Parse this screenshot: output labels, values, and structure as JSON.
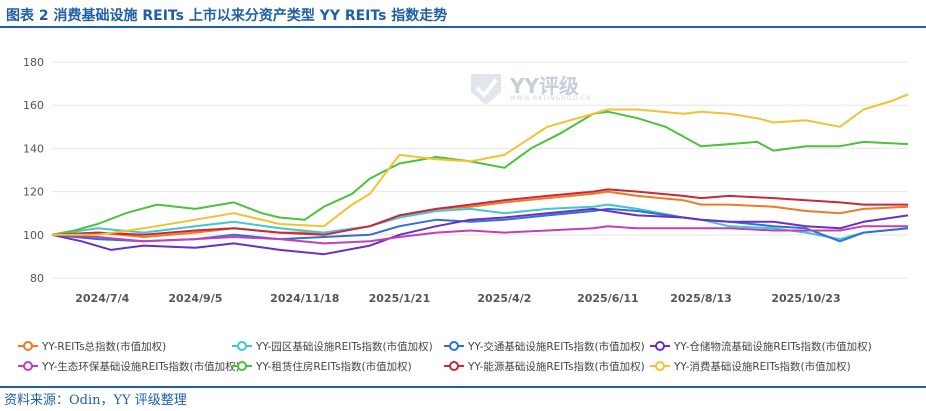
{
  "figure_title": "图表 2 消费基础设施 REITs 上市以来分资产类型 YY REITs 指数走势",
  "source_note": "资料来源：Odin，YY 评级整理",
  "watermark": {
    "text": "YY评级",
    "sub": "WWW.RATINGDOG.CN",
    "icon": "check-shield-icon"
  },
  "chart_data": {
    "type": "line",
    "title": "",
    "xlabel": "",
    "ylabel": "",
    "ylim": [
      80,
      180
    ],
    "yticks": [
      80,
      100,
      120,
      140,
      160,
      180
    ],
    "grid": true,
    "legend_position": "bottom",
    "x_range": [
      "2024-05-31",
      "2025-12-31"
    ],
    "xticks": [
      "2024/7/4",
      "2024/9/5",
      "2024/11/18",
      "2025/1/21",
      "2025/4/2",
      "2025/6/11",
      "2025/8/13",
      "2025/10/23"
    ],
    "series": [
      {
        "name": "YY-REITs总指数(市值加权)",
        "color": "#f07a1f",
        "points": [
          [
            "2024-05-31",
            100
          ],
          [
            "2024-07-01",
            101
          ],
          [
            "2024-08-01",
            99
          ],
          [
            "2024-09-05",
            101
          ],
          [
            "2024-10-01",
            103
          ],
          [
            "2024-11-01",
            101
          ],
          [
            "2024-12-01",
            101
          ],
          [
            "2025-01-01",
            104
          ],
          [
            "2025-01-21",
            109
          ],
          [
            "2025-02-15",
            112
          ],
          [
            "2025-03-10",
            113
          ],
          [
            "2025-04-02",
            115
          ],
          [
            "2025-05-01",
            117
          ],
          [
            "2025-06-01",
            119
          ],
          [
            "2025-06-11",
            120
          ],
          [
            "2025-07-01",
            118
          ],
          [
            "2025-08-01",
            116
          ],
          [
            "2025-08-13",
            114
          ],
          [
            "2025-09-01",
            114
          ],
          [
            "2025-10-01",
            113
          ],
          [
            "2025-10-23",
            111
          ],
          [
            "2025-11-15",
            110
          ],
          [
            "2025-12-01",
            112
          ],
          [
            "2025-12-31",
            113
          ]
        ]
      },
      {
        "name": "YY-园区基础设施REITs指数(市值加权)",
        "color": "#3ec8d0",
        "points": [
          [
            "2024-05-31",
            100
          ],
          [
            "2024-07-01",
            103
          ],
          [
            "2024-08-01",
            101
          ],
          [
            "2024-09-05",
            104
          ],
          [
            "2024-10-01",
            106
          ],
          [
            "2024-11-01",
            103
          ],
          [
            "2024-12-01",
            101
          ],
          [
            "2025-01-01",
            104
          ],
          [
            "2025-01-21",
            108
          ],
          [
            "2025-02-15",
            111
          ],
          [
            "2025-03-10",
            112
          ],
          [
            "2025-04-02",
            110
          ],
          [
            "2025-05-01",
            112
          ],
          [
            "2025-06-01",
            113
          ],
          [
            "2025-06-11",
            114
          ],
          [
            "2025-07-01",
            112
          ],
          [
            "2025-08-01",
            108
          ],
          [
            "2025-08-13",
            107
          ],
          [
            "2025-09-01",
            104
          ],
          [
            "2025-10-01",
            103
          ],
          [
            "2025-10-23",
            101
          ],
          [
            "2025-11-15",
            98
          ],
          [
            "2025-12-01",
            101
          ],
          [
            "2025-12-31",
            103
          ]
        ]
      },
      {
        "name": "YY-交通基础设施REITs指数(市值加权)",
        "color": "#2f6fd6",
        "points": [
          [
            "2024-05-31",
            100
          ],
          [
            "2024-07-01",
            98
          ],
          [
            "2024-08-01",
            97
          ],
          [
            "2024-09-05",
            98
          ],
          [
            "2024-10-01",
            100
          ],
          [
            "2024-11-01",
            98
          ],
          [
            "2024-12-01",
            99
          ],
          [
            "2025-01-01",
            100
          ],
          [
            "2025-01-21",
            104
          ],
          [
            "2025-02-15",
            107
          ],
          [
            "2025-03-10",
            106
          ],
          [
            "2025-04-02",
            107
          ],
          [
            "2025-05-01",
            109
          ],
          [
            "2025-06-01",
            111
          ],
          [
            "2025-06-11",
            112
          ],
          [
            "2025-07-01",
            111
          ],
          [
            "2025-08-01",
            108
          ],
          [
            "2025-08-13",
            107
          ],
          [
            "2025-09-01",
            106
          ],
          [
            "2025-10-01",
            104
          ],
          [
            "2025-10-23",
            103
          ],
          [
            "2025-11-15",
            97
          ],
          [
            "2025-12-01",
            101
          ],
          [
            "2025-12-31",
            103
          ]
        ]
      },
      {
        "name": "YY-仓储物流基础设施REITs指数(市值加权)",
        "color": "#6a2fc6",
        "points": [
          [
            "2024-05-31",
            100
          ],
          [
            "2024-06-20",
            97
          ],
          [
            "2024-07-10",
            93
          ],
          [
            "2024-08-01",
            95
          ],
          [
            "2024-09-05",
            94
          ],
          [
            "2024-10-01",
            96
          ],
          [
            "2024-11-01",
            93
          ],
          [
            "2024-12-01",
            91
          ],
          [
            "2025-01-01",
            95
          ],
          [
            "2025-01-21",
            100
          ],
          [
            "2025-02-15",
            104
          ],
          [
            "2025-03-10",
            107
          ],
          [
            "2025-04-02",
            108
          ],
          [
            "2025-05-01",
            110
          ],
          [
            "2025-06-01",
            112
          ],
          [
            "2025-06-11",
            111
          ],
          [
            "2025-07-01",
            109
          ],
          [
            "2025-08-01",
            108
          ],
          [
            "2025-08-13",
            107
          ],
          [
            "2025-09-01",
            106
          ],
          [
            "2025-10-01",
            106
          ],
          [
            "2025-10-23",
            104
          ],
          [
            "2025-11-15",
            103
          ],
          [
            "2025-12-01",
            106
          ],
          [
            "2025-12-31",
            109
          ]
        ]
      },
      {
        "name": "YY-生态环保基础设施REITs指数(市值加权)",
        "color": "#c43fb5",
        "points": [
          [
            "2024-05-31",
            100
          ],
          [
            "2024-07-01",
            99
          ],
          [
            "2024-08-01",
            97
          ],
          [
            "2024-09-05",
            98
          ],
          [
            "2024-10-01",
            99
          ],
          [
            "2024-11-01",
            98
          ],
          [
            "2024-12-01",
            96
          ],
          [
            "2025-01-01",
            97
          ],
          [
            "2025-01-21",
            99
          ],
          [
            "2025-02-15",
            101
          ],
          [
            "2025-03-10",
            102
          ],
          [
            "2025-04-02",
            101
          ],
          [
            "2025-05-01",
            102
          ],
          [
            "2025-06-01",
            103
          ],
          [
            "2025-06-11",
            104
          ],
          [
            "2025-07-01",
            103
          ],
          [
            "2025-08-01",
            103
          ],
          [
            "2025-08-13",
            103
          ],
          [
            "2025-09-01",
            103
          ],
          [
            "2025-10-01",
            102
          ],
          [
            "2025-10-23",
            102
          ],
          [
            "2025-11-15",
            102
          ],
          [
            "2025-12-01",
            104
          ],
          [
            "2025-12-31",
            104
          ]
        ]
      },
      {
        "name": "YY-租赁住房REITs指数(市值加权)",
        "color": "#4cc23a",
        "points": [
          [
            "2024-05-31",
            100
          ],
          [
            "2024-06-15",
            102
          ],
          [
            "2024-07-01",
            105
          ],
          [
            "2024-07-20",
            110
          ],
          [
            "2024-08-10",
            114
          ],
          [
            "2024-09-05",
            112
          ],
          [
            "2024-10-01",
            115
          ],
          [
            "2024-10-20",
            110
          ],
          [
            "2024-11-01",
            108
          ],
          [
            "2024-11-18",
            107
          ],
          [
            "2024-12-01",
            113
          ],
          [
            "2024-12-20",
            119
          ],
          [
            "2025-01-01",
            126
          ],
          [
            "2025-01-21",
            133
          ],
          [
            "2025-02-15",
            136
          ],
          [
            "2025-03-10",
            134
          ],
          [
            "2025-04-02",
            131
          ],
          [
            "2025-04-20",
            140
          ],
          [
            "2025-05-10",
            147
          ],
          [
            "2025-06-01",
            156
          ],
          [
            "2025-06-11",
            157
          ],
          [
            "2025-07-01",
            154
          ],
          [
            "2025-07-20",
            150
          ],
          [
            "2025-08-13",
            141
          ],
          [
            "2025-09-01",
            142
          ],
          [
            "2025-09-20",
            143
          ],
          [
            "2025-10-01",
            139
          ],
          [
            "2025-10-23",
            141
          ],
          [
            "2025-11-15",
            141
          ],
          [
            "2025-12-01",
            143
          ],
          [
            "2025-12-31",
            142
          ]
        ]
      },
      {
        "name": "YY-能源基础设施REITs指数(市值加权)",
        "color": "#c8283a",
        "points": [
          [
            "2024-05-31",
            100
          ],
          [
            "2024-07-01",
            101
          ],
          [
            "2024-08-01",
            100
          ],
          [
            "2024-09-05",
            102
          ],
          [
            "2024-10-01",
            103
          ],
          [
            "2024-11-01",
            101
          ],
          [
            "2024-12-01",
            100
          ],
          [
            "2025-01-01",
            104
          ],
          [
            "2025-01-21",
            109
          ],
          [
            "2025-02-15",
            112
          ],
          [
            "2025-03-10",
            114
          ],
          [
            "2025-04-02",
            116
          ],
          [
            "2025-05-01",
            118
          ],
          [
            "2025-06-01",
            120
          ],
          [
            "2025-06-11",
            121
          ],
          [
            "2025-07-01",
            120
          ],
          [
            "2025-08-01",
            118
          ],
          [
            "2025-08-13",
            117
          ],
          [
            "2025-09-01",
            118
          ],
          [
            "2025-10-01",
            117
          ],
          [
            "2025-10-23",
            116
          ],
          [
            "2025-11-15",
            115
          ],
          [
            "2025-12-01",
            114
          ],
          [
            "2025-12-31",
            114
          ]
        ]
      },
      {
        "name": "YY-消费基础设施REITs指数(市值加权)",
        "color": "#f2c230",
        "points": [
          [
            "2024-05-31",
            100
          ],
          [
            "2024-07-01",
            100
          ],
          [
            "2024-08-01",
            103
          ],
          [
            "2024-09-05",
            107
          ],
          [
            "2024-10-01",
            110
          ],
          [
            "2024-11-01",
            105
          ],
          [
            "2024-12-01",
            104
          ],
          [
            "2024-12-20",
            114
          ],
          [
            "2025-01-01",
            119
          ],
          [
            "2025-01-21",
            137
          ],
          [
            "2025-02-15",
            135
          ],
          [
            "2025-03-10",
            134
          ],
          [
            "2025-04-02",
            137
          ],
          [
            "2025-05-01",
            150
          ],
          [
            "2025-06-01",
            156
          ],
          [
            "2025-06-11",
            158
          ],
          [
            "2025-07-01",
            158
          ],
          [
            "2025-08-01",
            156
          ],
          [
            "2025-08-13",
            157
          ],
          [
            "2025-09-01",
            156
          ],
          [
            "2025-09-20",
            154
          ],
          [
            "2025-10-01",
            152
          ],
          [
            "2025-10-23",
            153
          ],
          [
            "2025-11-15",
            150
          ],
          [
            "2025-12-01",
            158
          ],
          [
            "2025-12-20",
            162
          ],
          [
            "2025-12-31",
            165
          ]
        ]
      }
    ]
  }
}
